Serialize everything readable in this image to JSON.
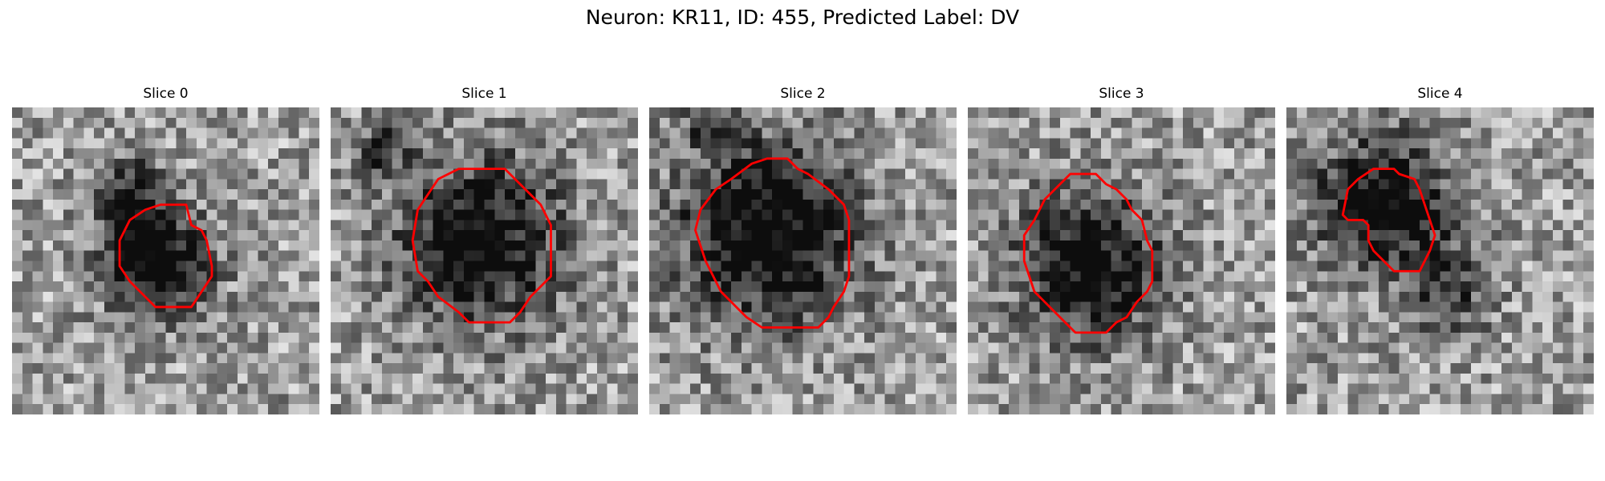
{
  "figure": {
    "title": "Neuron: KR11, ID: 455, Predicted Label: DV"
  },
  "slices": [
    {
      "label": "Slice 0",
      "contour": [
        [
          14.5,
          9.5
        ],
        [
          17,
          9.5
        ],
        [
          17.5,
          11.5
        ],
        [
          18.5,
          12
        ],
        [
          19,
          13
        ],
        [
          19.5,
          15.5
        ],
        [
          19.5,
          16.5
        ],
        [
          18.5,
          18
        ],
        [
          17.5,
          19.5
        ],
        [
          14,
          19.5
        ],
        [
          13,
          18.5
        ],
        [
          11.5,
          17
        ],
        [
          10.5,
          15.5
        ],
        [
          10.5,
          13
        ],
        [
          11.5,
          11
        ],
        [
          13,
          10
        ]
      ],
      "blobs": [
        [
          14.5,
          15.5,
          3.5,
          0.7
        ],
        [
          11.5,
          8,
          2.2,
          0.45
        ],
        [
          12,
          12,
          2.5,
          0.35
        ]
      ]
    },
    {
      "label": "Slice 1",
      "contour": [
        [
          12.5,
          6
        ],
        [
          17,
          6
        ],
        [
          18.5,
          7.5
        ],
        [
          19.5,
          8.5
        ],
        [
          20.5,
          9.5
        ],
        [
          21.5,
          11.5
        ],
        [
          21.5,
          16.5
        ],
        [
          20.5,
          17.5
        ],
        [
          19.5,
          18.5
        ],
        [
          18.5,
          20
        ],
        [
          17.5,
          21
        ],
        [
          13.5,
          21
        ],
        [
          12.5,
          20
        ],
        [
          10.5,
          18.5
        ],
        [
          9.5,
          17
        ],
        [
          8.5,
          16
        ],
        [
          8,
          13
        ],
        [
          8.5,
          10
        ],
        [
          9.5,
          8.5
        ],
        [
          10.5,
          7
        ]
      ],
      "blobs": [
        [
          14.5,
          13,
          5.5,
          0.7
        ],
        [
          5,
          4,
          1.8,
          0.4
        ]
      ]
    },
    {
      "label": "Slice 2",
      "contour": [
        [
          11.5,
          5
        ],
        [
          13.5,
          5
        ],
        [
          14.5,
          6
        ],
        [
          15.5,
          6.5
        ],
        [
          17.5,
          8
        ],
        [
          19,
          9.5
        ],
        [
          19.5,
          11
        ],
        [
          19.5,
          16.5
        ],
        [
          19,
          18
        ],
        [
          18,
          19.5
        ],
        [
          17.5,
          20.5
        ],
        [
          16.5,
          21.5
        ],
        [
          11,
          21.5
        ],
        [
          9.5,
          20.5
        ],
        [
          8.5,
          19.5
        ],
        [
          7,
          18
        ],
        [
          6.5,
          17
        ],
        [
          5.5,
          15
        ],
        [
          4.5,
          12
        ],
        [
          5,
          10
        ],
        [
          6.5,
          8
        ],
        [
          8,
          7
        ],
        [
          10,
          5.5
        ]
      ],
      "blobs": [
        [
          11.5,
          12,
          6,
          0.75
        ],
        [
          6,
          1,
          2,
          0.35
        ]
      ]
    },
    {
      "label": "Slice 3",
      "contour": [
        [
          10,
          6.5
        ],
        [
          12.5,
          6.5
        ],
        [
          13.5,
          7.5
        ],
        [
          14.5,
          8
        ],
        [
          15.5,
          9
        ],
        [
          16,
          10
        ],
        [
          17,
          11
        ],
        [
          17.5,
          13
        ],
        [
          18,
          14
        ],
        [
          18,
          17
        ],
        [
          17.5,
          18
        ],
        [
          16.5,
          19
        ],
        [
          15.5,
          20.5
        ],
        [
          14.5,
          21
        ],
        [
          13.5,
          22
        ],
        [
          10.5,
          22
        ],
        [
          9.5,
          21
        ],
        [
          8.5,
          20
        ],
        [
          7.5,
          19
        ],
        [
          6.5,
          18
        ],
        [
          6,
          16.5
        ],
        [
          5.5,
          15
        ],
        [
          5.5,
          12.5
        ],
        [
          6.5,
          11
        ],
        [
          7.5,
          9
        ],
        [
          8.5,
          8
        ],
        [
          9.5,
          7
        ]
      ],
      "blobs": [
        [
          12,
          15.5,
          5,
          0.65
        ]
      ]
    },
    {
      "label": "Slice 4",
      "contour": [
        [
          8.5,
          6
        ],
        [
          10.5,
          6
        ],
        [
          11,
          6.5
        ],
        [
          12.5,
          7
        ],
        [
          13,
          8
        ],
        [
          13.5,
          9.5
        ],
        [
          14,
          11
        ],
        [
          14.5,
          12.5
        ],
        [
          14,
          14
        ],
        [
          13.5,
          15
        ],
        [
          13,
          16
        ],
        [
          10.5,
          16
        ],
        [
          9.5,
          15
        ],
        [
          8.5,
          14
        ],
        [
          8,
          13
        ],
        [
          8,
          11.5
        ],
        [
          7.5,
          11
        ],
        [
          6.5,
          11
        ],
        [
          6,
          11
        ],
        [
          5.5,
          10.5
        ],
        [
          6,
          8
        ],
        [
          7,
          7
        ]
      ],
      "blobs": [
        [
          9.5,
          9.5,
          4.5,
          0.7
        ],
        [
          16,
          18,
          3,
          0.35
        ]
      ]
    }
  ]
}
